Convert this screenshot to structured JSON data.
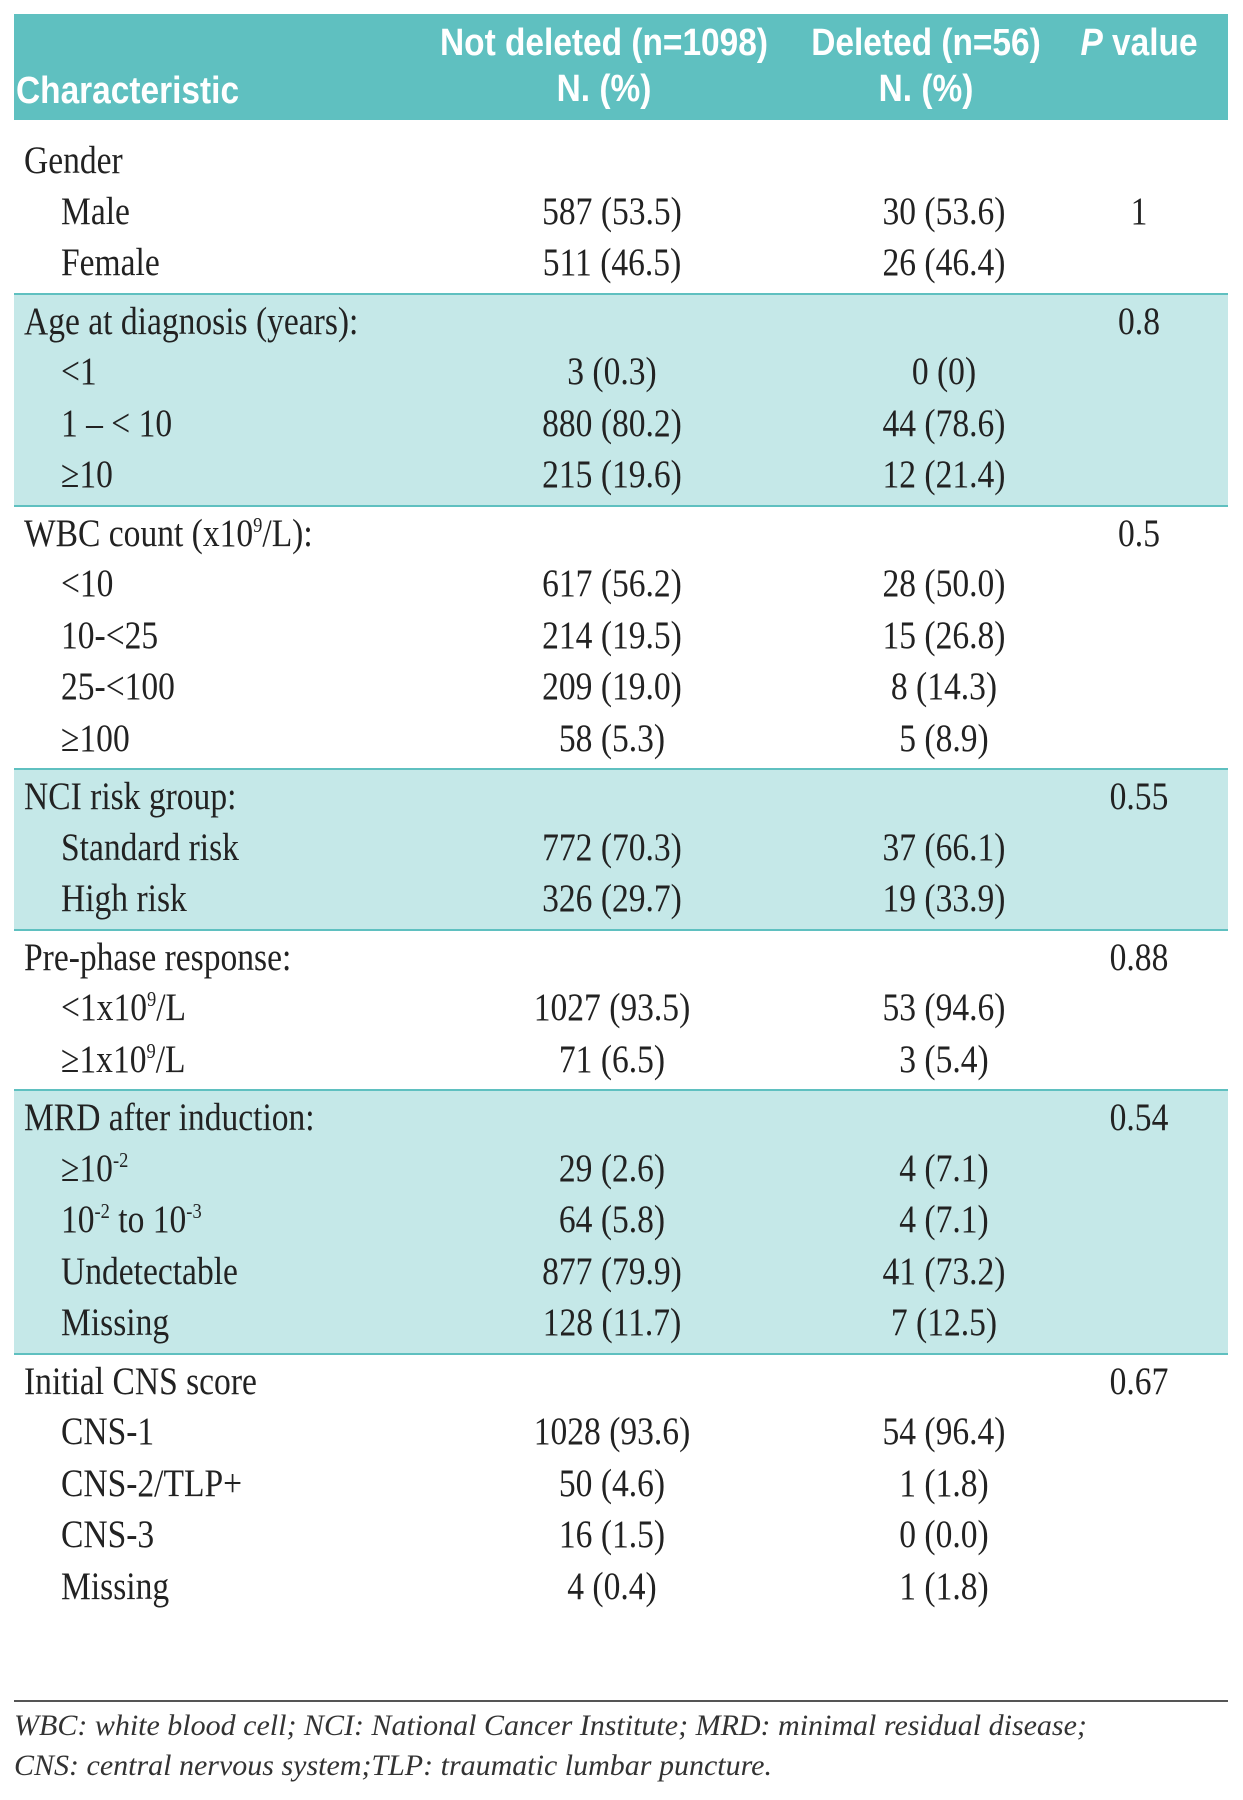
{
  "header": {
    "characteristic": "Characteristic",
    "not_deleted_line1": "Not deleted (n=1098)",
    "not_deleted_line2": "N. (%)",
    "deleted_line1": "Deleted (n=56)",
    "deleted_line2": "N. (%)",
    "p_italic": "P",
    "p_rest": " value"
  },
  "groups": [
    {
      "label": "Gender",
      "p": "",
      "rows": [
        {
          "label": "Male",
          "nd": "587 (53.5)",
          "d": "30 (53.6)",
          "p": "1"
        },
        {
          "label": "Female",
          "nd": "511 (46.5)",
          "d": "26 (46.4)",
          "p": ""
        }
      ]
    },
    {
      "label": "Age at diagnosis (years):",
      "p": "0.8",
      "rows": [
        {
          "label": "<1",
          "nd": "3 (0.3)",
          "d": "0 (0)",
          "p": ""
        },
        {
          "label": "1 – < 10",
          "nd": "880 (80.2)",
          "d": "44 (78.6)",
          "p": ""
        },
        {
          "label": "≥10",
          "nd": "215 (19.6)",
          "d": "12 (21.4)",
          "p": ""
        }
      ]
    },
    {
      "label_pre": "WBC count (x10",
      "label_sup": "9",
      "label_post": "/L):",
      "p": "0.5",
      "rows": [
        {
          "label": "<10",
          "nd": "617 (56.2)",
          "d": "28 (50.0)",
          "p": ""
        },
        {
          "label": "10-<25",
          "nd": "214 (19.5)",
          "d": "15 (26.8)",
          "p": ""
        },
        {
          "label": "25-<100",
          "nd": "209 (19.0)",
          "d": "8 (14.3)",
          "p": ""
        },
        {
          "label": "≥100",
          "nd": "58 (5.3)",
          "d": "5 (8.9)",
          "p": ""
        }
      ]
    },
    {
      "label": "NCI risk group:",
      "p": "0.55",
      "rows": [
        {
          "label": "Standard risk",
          "nd": "772 (70.3)",
          "d": "37 (66.1)",
          "p": ""
        },
        {
          "label": "High risk",
          "nd": "326 (29.7)",
          "d": "19 (33.9)",
          "p": ""
        }
      ]
    },
    {
      "label": "Pre-phase response:",
      "p": "0.88",
      "rows": [
        {
          "label_pre": "<1x10",
          "label_sup": "9",
          "label_post": "/L",
          "nd": "1027 (93.5)",
          "d": "53 (94.6)",
          "p": ""
        },
        {
          "label_pre": "≥1x10",
          "label_sup": "9",
          "label_post": "/L",
          "nd": "71 (6.5)",
          "d": "3 (5.4)",
          "p": ""
        }
      ]
    },
    {
      "label": "MRD after induction:",
      "p": "0.54",
      "rows": [
        {
          "label_pre": "≥10",
          "label_sup": "-2",
          "label_post": "",
          "nd": "29 (2.6)",
          "d": "4 (7.1)",
          "p": ""
        },
        {
          "label_pre": "10",
          "label_sup": "-2",
          "label_mid": " to 10",
          "label_sup2": "-3",
          "nd": "64 (5.8)",
          "d": "4 (7.1)",
          "p": ""
        },
        {
          "label": "Undetectable",
          "nd": "877 (79.9)",
          "d": "41 (73.2)",
          "p": ""
        },
        {
          "label": "Missing",
          "nd": "128 (11.7)",
          "d": "7 (12.5)",
          "p": ""
        }
      ]
    },
    {
      "label": "Initial CNS score",
      "p": "0.67",
      "rows": [
        {
          "label": "CNS-1",
          "nd": "1028 (93.6)",
          "d": "54 (96.4)",
          "p": ""
        },
        {
          "label": "CNS-2/TLP+",
          "nd": "50 (4.6)",
          "d": "1 (1.8)",
          "p": ""
        },
        {
          "label": "CNS-3",
          "nd": "16 (1.5)",
          "d": "0 (0.0)",
          "p": ""
        },
        {
          "label": "Missing",
          "nd": "4 (0.4)",
          "d": "1 (1.8)",
          "p": ""
        }
      ]
    }
  ],
  "footer": {
    "line1": "WBC: white blood cell; NCI: National Cancer Institute; MRD: minimal residual disease;",
    "line2": "CNS: central nervous system;TLP: traumatic lumbar puncture."
  },
  "colors": {
    "header": "#5fc0c0",
    "shade": "#c5e8e8"
  }
}
